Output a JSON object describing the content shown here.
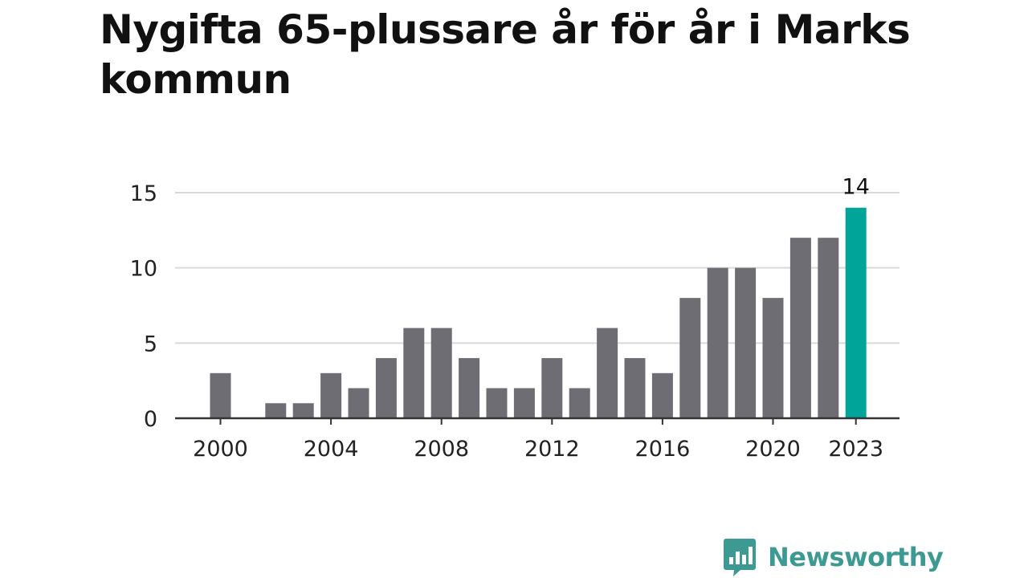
{
  "title": "Nygifta 65-plussare år för år i Marks kommun",
  "brand": {
    "name": "Newsworthy",
    "color": "#3d9a92",
    "icon": "newsworthy-logo-icon"
  },
  "colors": {
    "bar": "#6e6d73",
    "highlight": "#00a499",
    "grid": "#d9d9d9",
    "axis": "#333333",
    "text": "#222222"
  },
  "chart_data": {
    "type": "bar",
    "title": "Nygifta 65-plussare år för år i Marks kommun",
    "xlabel": "",
    "ylabel": "",
    "categories": [
      "2000",
      "2001",
      "2002",
      "2003",
      "2004",
      "2005",
      "2006",
      "2007",
      "2008",
      "2009",
      "2010",
      "2011",
      "2012",
      "2013",
      "2014",
      "2015",
      "2016",
      "2017",
      "2018",
      "2019",
      "2020",
      "2021",
      "2022",
      "2023"
    ],
    "values": [
      3,
      0,
      1,
      1,
      3,
      2,
      4,
      6,
      6,
      4,
      2,
      2,
      4,
      2,
      6,
      4,
      3,
      8,
      10,
      10,
      8,
      12,
      12,
      14
    ],
    "ylim": [
      0,
      15
    ],
    "yticks": [
      "0",
      "5",
      "10",
      "15"
    ],
    "xticks": [
      "2000",
      "2004",
      "2008",
      "2012",
      "2016",
      "2020",
      "2023"
    ],
    "highlight": {
      "category": "2023",
      "label": "14"
    },
    "grid": true
  }
}
